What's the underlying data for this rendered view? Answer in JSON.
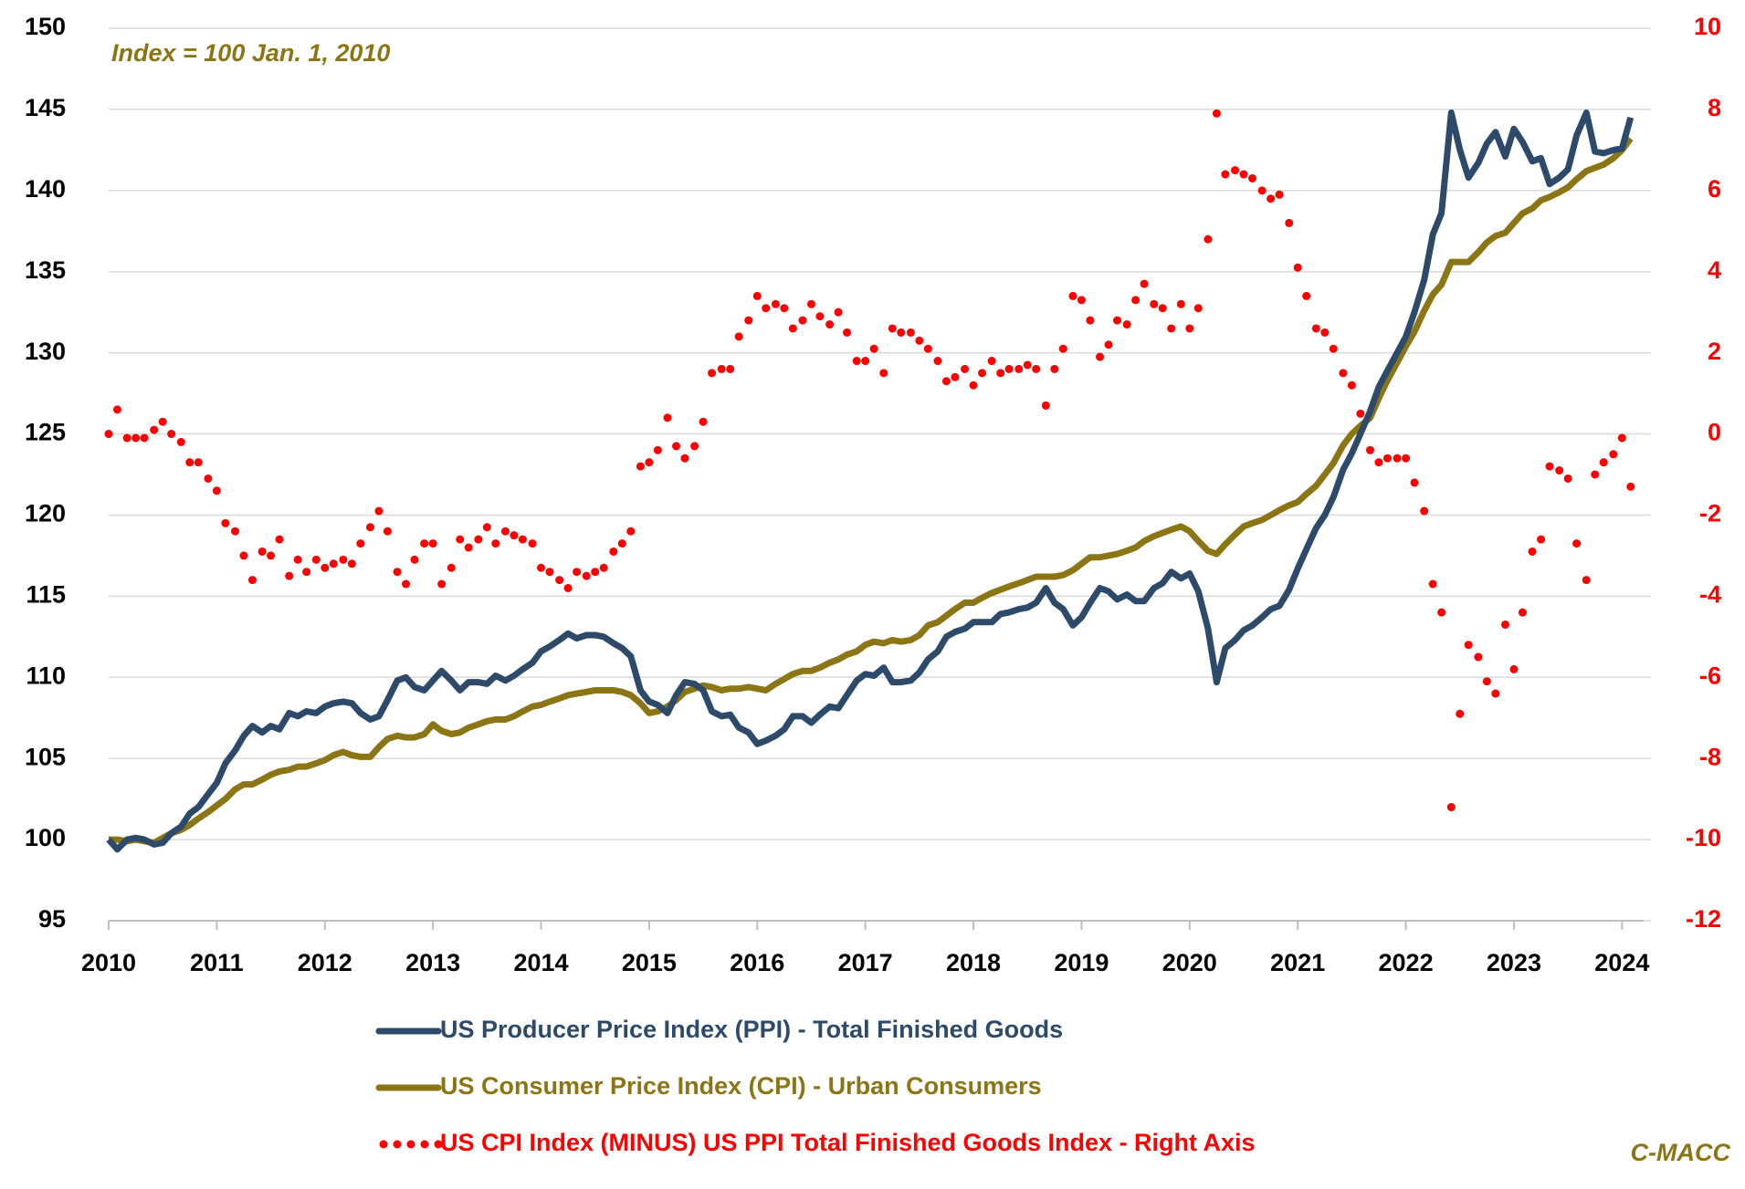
{
  "chart_data": {
    "type": "line",
    "subtitle": "Index = 100 Jan. 1, 2010",
    "annotation": "C-MACC",
    "grid": true,
    "xlim": [
      2010,
      2024.2
    ],
    "xticks": [
      2010,
      2011,
      2012,
      2013,
      2014,
      2015,
      2016,
      2017,
      2018,
      2019,
      2020,
      2021,
      2022,
      2023,
      2024
    ],
    "ylim": [
      95,
      150
    ],
    "yticks": [
      95,
      100,
      105,
      110,
      115,
      120,
      125,
      130,
      135,
      140,
      145,
      150
    ],
    "y2lim": [
      -12,
      10
    ],
    "y2ticks": [
      -12,
      -10,
      -8,
      -6,
      -4,
      -2,
      0,
      2,
      4,
      6,
      8,
      10
    ],
    "y2color": "#ff0000",
    "x": [
      2010,
      2010.08,
      2010.17,
      2010.25,
      2010.33,
      2010.42,
      2010.5,
      2010.58,
      2010.67,
      2010.75,
      2010.83,
      2010.92,
      2011,
      2011.08,
      2011.17,
      2011.25,
      2011.33,
      2011.42,
      2011.5,
      2011.58,
      2011.67,
      2011.75,
      2011.83,
      2011.92,
      2012,
      2012.08,
      2012.17,
      2012.25,
      2012.33,
      2012.42,
      2012.5,
      2012.58,
      2012.67,
      2012.75,
      2012.83,
      2012.92,
      2013,
      2013.08,
      2013.17,
      2013.25,
      2013.33,
      2013.42,
      2013.5,
      2013.58,
      2013.67,
      2013.75,
      2013.83,
      2013.92,
      2014,
      2014.08,
      2014.17,
      2014.25,
      2014.33,
      2014.42,
      2014.5,
      2014.58,
      2014.67,
      2014.75,
      2014.83,
      2014.92,
      2015,
      2015.08,
      2015.17,
      2015.25,
      2015.33,
      2015.42,
      2015.5,
      2015.58,
      2015.67,
      2015.75,
      2015.83,
      2015.92,
      2016,
      2016.08,
      2016.17,
      2016.25,
      2016.33,
      2016.42,
      2016.5,
      2016.58,
      2016.67,
      2016.75,
      2016.83,
      2016.92,
      2017,
      2017.08,
      2017.17,
      2017.25,
      2017.33,
      2017.42,
      2017.5,
      2017.58,
      2017.67,
      2017.75,
      2017.83,
      2017.92,
      2018,
      2018.08,
      2018.17,
      2018.25,
      2018.33,
      2018.42,
      2018.5,
      2018.58,
      2018.67,
      2018.75,
      2018.83,
      2018.92,
      2019,
      2019.08,
      2019.17,
      2019.25,
      2019.33,
      2019.42,
      2019.5,
      2019.58,
      2019.67,
      2019.75,
      2019.83,
      2019.92,
      2020,
      2020.08,
      2020.17,
      2020.25,
      2020.33,
      2020.42,
      2020.5,
      2020.58,
      2020.67,
      2020.75,
      2020.83,
      2020.92,
      2021,
      2021.08,
      2021.17,
      2021.25,
      2021.33,
      2021.42,
      2021.5,
      2021.58,
      2021.67,
      2021.75,
      2021.83,
      2021.92,
      2022,
      2022.08,
      2022.17,
      2022.25,
      2022.33,
      2022.42,
      2022.5,
      2022.58,
      2022.67,
      2022.75,
      2022.83,
      2022.92,
      2023,
      2023.08,
      2023.17,
      2023.25,
      2023.33,
      2023.42,
      2023.5,
      2023.58,
      2023.67,
      2023.75,
      2023.83,
      2023.92,
      2024,
      2024.08
    ],
    "series": [
      {
        "name": "US Producer Price Index (PPI) - Total Finished Goods",
        "color": "#2d4a6b",
        "dash": "solid",
        "values": [
          100,
          99.4,
          100,
          100.1,
          100,
          99.7,
          99.8,
          100.4,
          100.8,
          101.6,
          102,
          102.8,
          103.5,
          104.7,
          105.5,
          106.4,
          107,
          106.6,
          107,
          106.8,
          107.8,
          107.6,
          107.9,
          107.8,
          108.2,
          108.4,
          108.5,
          108.4,
          107.8,
          107.4,
          107.6,
          108.6,
          109.8,
          110,
          109.4,
          109.2,
          109.8,
          110.4,
          109.8,
          109.2,
          109.7,
          109.7,
          109.6,
          110.1,
          109.8,
          110.1,
          110.5,
          110.9,
          111.6,
          111.9,
          112.3,
          112.7,
          112.4,
          112.6,
          112.6,
          112.5,
          112.1,
          111.8,
          111.3,
          109.2,
          108.5,
          108.3,
          107.8,
          108.9,
          109.7,
          109.6,
          109.2,
          107.9,
          107.6,
          107.7,
          106.9,
          106.6,
          105.9,
          106.1,
          106.4,
          106.8,
          107.6,
          107.6,
          107.2,
          107.7,
          108.2,
          108.1,
          108.9,
          109.8,
          110.2,
          110.1,
          110.6,
          109.7,
          109.7,
          109.8,
          110.3,
          111.1,
          111.6,
          112.5,
          112.8,
          113,
          113.4,
          113.4,
          113.4,
          113.9,
          114,
          114.2,
          114.3,
          114.6,
          115.5,
          114.6,
          114.2,
          113.2,
          113.7,
          114.6,
          115.5,
          115.3,
          114.8,
          115.1,
          114.7,
          114.7,
          115.5,
          115.8,
          116.5,
          116.1,
          116.4,
          115.3,
          113,
          109.7,
          111.8,
          112.3,
          112.9,
          113.2,
          113.7,
          114.2,
          114.4,
          115.4,
          116.7,
          117.9,
          119.2,
          120,
          121.1,
          122.8,
          123.8,
          125,
          126.4,
          127.9,
          128.9,
          130,
          131,
          132.5,
          134.5,
          137.3,
          138.6,
          144.8,
          142.5,
          140.8,
          141.7,
          142.9,
          143.6,
          142.1,
          143.8,
          143,
          141.8,
          142,
          140.4,
          140.8,
          141.3,
          143.4,
          144.8,
          142.4,
          142.3,
          142.5,
          142.6,
          144.5
        ]
      },
      {
        "name": "US Consumer Price Index (CPI) - Urban Consumers",
        "color": "#8b7514",
        "dash": "solid",
        "values": [
          100,
          100,
          99.9,
          100,
          99.9,
          99.8,
          100.1,
          100.4,
          100.6,
          100.9,
          101.3,
          101.7,
          102.1,
          102.5,
          103.1,
          103.4,
          103.4,
          103.7,
          104,
          104.2,
          104.3,
          104.5,
          104.5,
          104.7,
          104.9,
          105.2,
          105.4,
          105.2,
          105.1,
          105.1,
          105.7,
          106.2,
          106.4,
          106.3,
          106.3,
          106.5,
          107.1,
          106.7,
          106.5,
          106.6,
          106.9,
          107.1,
          107.3,
          107.4,
          107.4,
          107.6,
          107.9,
          108.2,
          108.3,
          108.5,
          108.7,
          108.9,
          109,
          109.1,
          109.2,
          109.2,
          109.2,
          109.1,
          108.9,
          108.4,
          107.8,
          107.9,
          108.2,
          108.6,
          109.1,
          109.3,
          109.5,
          109.4,
          109.2,
          109.3,
          109.3,
          109.4,
          109.3,
          109.2,
          109.6,
          109.9,
          110.2,
          110.4,
          110.4,
          110.6,
          110.9,
          111.1,
          111.4,
          111.6,
          112,
          112.2,
          112.1,
          112.3,
          112.2,
          112.3,
          112.6,
          113.2,
          113.4,
          113.8,
          114.2,
          114.6,
          114.6,
          114.9,
          115.2,
          115.4,
          115.6,
          115.8,
          116,
          116.2,
          116.2,
          116.2,
          116.3,
          116.6,
          117,
          117.4,
          117.4,
          117.5,
          117.6,
          117.8,
          118,
          118.4,
          118.7,
          118.9,
          119.1,
          119.3,
          119,
          118.4,
          117.8,
          117.6,
          118.2,
          118.8,
          119.3,
          119.5,
          119.7,
          120,
          120.3,
          120.6,
          120.8,
          121.3,
          121.8,
          122.5,
          123.2,
          124.3,
          125,
          125.5,
          126,
          127.2,
          128.3,
          129.4,
          130.4,
          131.3,
          132.6,
          133.6,
          134.2,
          135.6,
          135.6,
          135.6,
          136.2,
          136.8,
          137.2,
          137.4,
          138,
          138.6,
          138.9,
          139.4,
          139.6,
          139.9,
          140.2,
          140.7,
          141.2,
          141.4,
          141.6,
          142,
          142.5,
          143.2
        ]
      },
      {
        "name": "US CPI Index (MINUS) US PPI Total Finished Goods Index - Right Axis",
        "color": "#ff0000",
        "dash": "dotted",
        "axis": "y2",
        "values": [
          0,
          0.6,
          -0.1,
          -0.1,
          -0.1,
          0.1,
          0.3,
          0,
          -0.2,
          -0.7,
          -0.7,
          -1.1,
          -1.4,
          -2.2,
          -2.4,
          -3,
          -3.6,
          -2.9,
          -3,
          -2.6,
          -3.5,
          -3.1,
          -3.4,
          -3.1,
          -3.3,
          -3.2,
          -3.1,
          -3.2,
          -2.7,
          -2.3,
          -1.9,
          -2.4,
          -3.4,
          -3.7,
          -3.1,
          -2.7,
          -2.7,
          -3.7,
          -3.3,
          -2.6,
          -2.8,
          -2.6,
          -2.3,
          -2.7,
          -2.4,
          -2.5,
          -2.6,
          -2.7,
          -3.3,
          -3.4,
          -3.6,
          -3.8,
          -3.4,
          -3.5,
          -3.4,
          -3.3,
          -2.9,
          -2.7,
          -2.4,
          -0.8,
          -0.7,
          -0.4,
          0.4,
          -0.3,
          -0.6,
          -0.3,
          0.3,
          1.5,
          1.6,
          1.6,
          2.4,
          2.8,
          3.4,
          3.1,
          3.2,
          3.1,
          2.6,
          2.8,
          3.2,
          2.9,
          2.7,
          3,
          2.5,
          1.8,
          1.8,
          2.1,
          1.5,
          2.6,
          2.5,
          2.5,
          2.3,
          2.1,
          1.8,
          1.3,
          1.4,
          1.6,
          1.2,
          1.5,
          1.8,
          1.5,
          1.6,
          1.6,
          1.7,
          1.6,
          0.7,
          1.6,
          2.1,
          3.4,
          3.3,
          2.8,
          1.9,
          2.2,
          2.8,
          2.7,
          3.3,
          3.7,
          3.2,
          3.1,
          2.6,
          3.2,
          2.6,
          3.1,
          4.8,
          7.9,
          6.4,
          6.5,
          6.4,
          6.3,
          6,
          5.8,
          5.9,
          5.2,
          4.1,
          3.4,
          2.6,
          2.5,
          2.1,
          1.5,
          1.2,
          0.5,
          -0.4,
          -0.7,
          -0.6,
          -0.6,
          -0.6,
          -1.2,
          -1.9,
          -3.7,
          -4.4,
          -9.2,
          -6.9,
          -5.2,
          -5.5,
          -6.1,
          -6.4,
          -4.7,
          -5.8,
          -4.4,
          -2.9,
          -2.6,
          -0.8,
          -0.9,
          -1.1,
          -2.7,
          -3.6,
          -1,
          -0.7,
          -0.5,
          -0.1,
          -1.3
        ]
      }
    ]
  }
}
